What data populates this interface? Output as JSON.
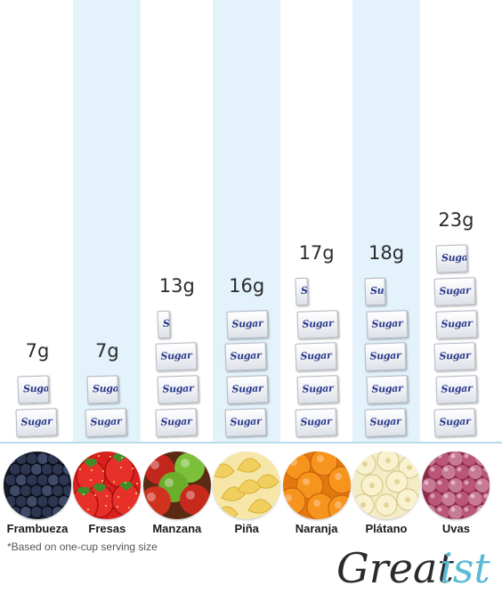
{
  "chart_data": {
    "type": "bar",
    "categories": [
      "Frambueza",
      "Fresas",
      "Manzana",
      "Piña",
      "Naranja",
      "Plátano",
      "Uvas"
    ],
    "values": [
      7,
      7,
      13,
      16,
      17,
      18,
      23
    ],
    "value_labels": [
      "7g",
      "7g",
      "13g",
      "16g",
      "17g",
      "18g",
      "23g"
    ],
    "unit": "g",
    "grams_per_packet": 4,
    "packet_label": "Sugar",
    "title": "",
    "xlabel": "",
    "ylabel": ""
  },
  "fruit_icons": [
    "blackberry-icon",
    "strawberry-icon",
    "apple-icon",
    "pineapple-icon",
    "orange-icon",
    "banana-icon",
    "grape-icon"
  ],
  "footnote": "*Based on one-cup serving size",
  "brand": {
    "name": "Greatist",
    "colors": {
      "dark": "#2b2b2b",
      "accent": "#5bbad5"
    }
  },
  "colors": {
    "stripe": "#e3f2fb",
    "baseline": "#b9dceb",
    "packet_text": "#2b3a8c"
  }
}
